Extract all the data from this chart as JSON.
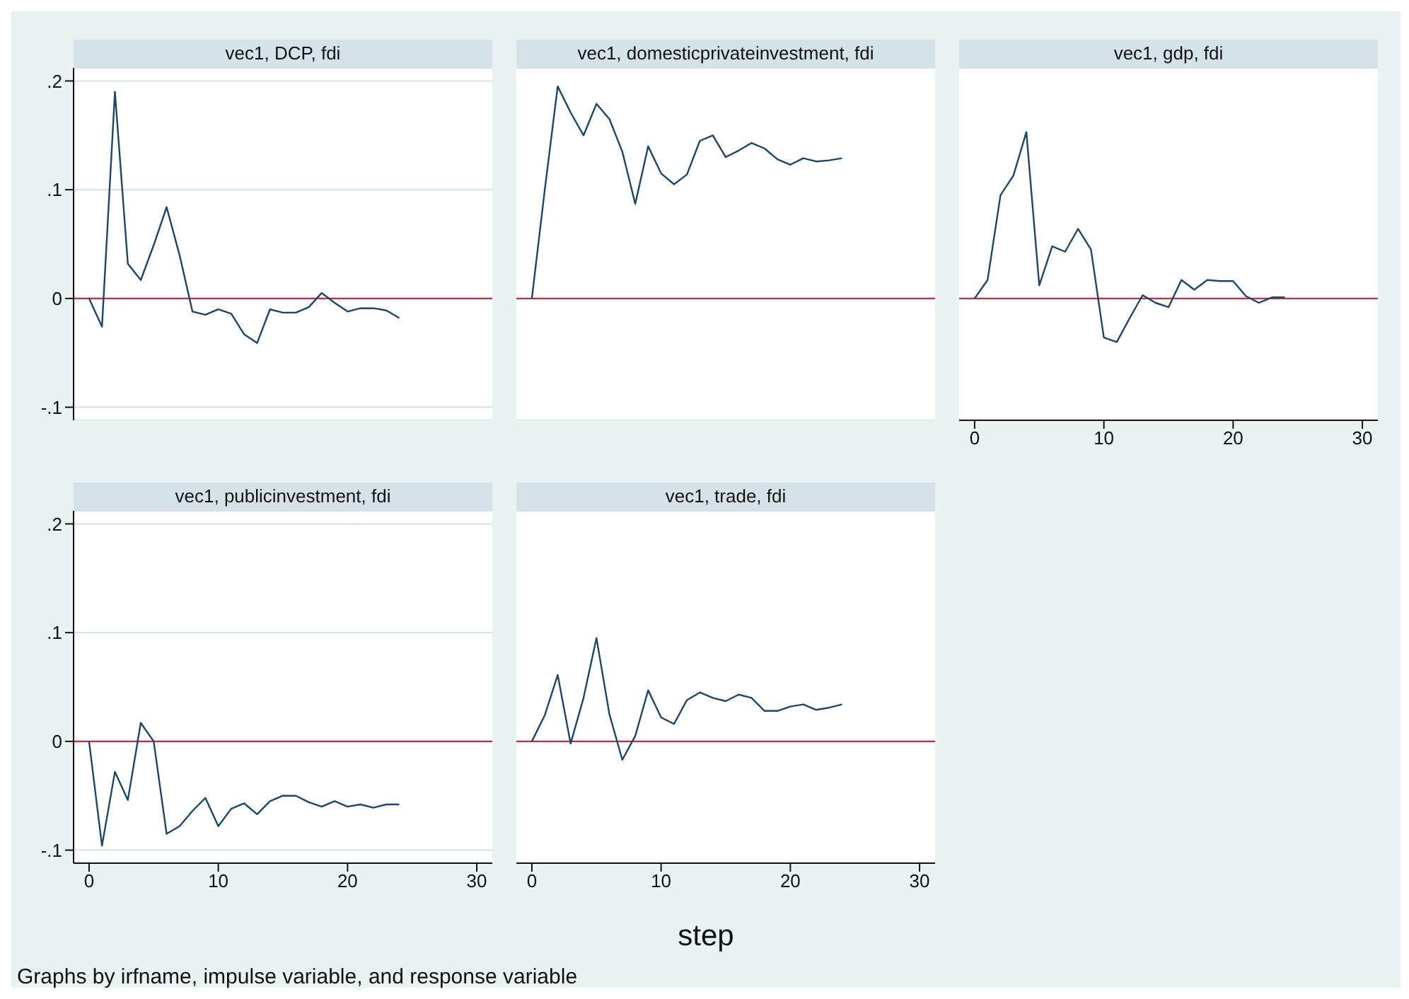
{
  "chart_data": [
    {
      "type": "line",
      "title": "vec1, DCP, fdi",
      "x": [
        0,
        1,
        2,
        3,
        4,
        5,
        6,
        7,
        8,
        9,
        10,
        11,
        12,
        13,
        14,
        15,
        16,
        17,
        18,
        19,
        20,
        21,
        22,
        23,
        24
      ],
      "series": [
        {
          "color": "#1a476f",
          "values": [
            0,
            -0.026,
            0.19,
            0.032,
            0.017,
            0.049,
            0.084,
            0.04,
            -0.012,
            -0.015,
            -0.01,
            -0.014,
            -0.033,
            -0.041,
            -0.01,
            -0.013,
            -0.013,
            -0.008,
            0.005,
            -0.004,
            -0.012,
            -0.009,
            -0.009,
            -0.011,
            -0.018
          ]
        }
      ],
      "xlim": [
        -1.2,
        31.2
      ],
      "xticks": [
        0,
        10,
        20,
        30
      ],
      "ylim": [
        -0.112,
        0.212
      ],
      "yticks": [
        {
          "value": -0.1,
          "label": "-.1"
        },
        0,
        {
          "value": 0.1,
          "label": ".1"
        },
        {
          "value": 0.2,
          "label": ".2"
        }
      ],
      "ref_lines": [
        {
          "axis": "y",
          "value": 0,
          "color": "#c0304a"
        }
      ],
      "grid": "y",
      "tick_labels": "y"
    },
    {
      "type": "line",
      "title": "vec1, domesticprivateinvestment, fdi",
      "x": [
        0,
        1,
        2,
        3,
        4,
        5,
        6,
        7,
        8,
        9,
        10,
        11,
        12,
        13,
        14,
        15,
        16,
        17,
        18,
        19,
        20,
        21,
        22,
        23,
        24
      ],
      "series": [
        {
          "color": "#1a476f",
          "values": [
            0,
            0.1,
            0.195,
            0.171,
            0.15,
            0.179,
            0.165,
            0.135,
            0.087,
            0.14,
            0.115,
            0.105,
            0.114,
            0.145,
            0.15,
            0.13,
            0.136,
            0.143,
            0.138,
            0.128,
            0.123,
            0.129,
            0.126,
            0.127,
            0.129
          ]
        }
      ],
      "xlim": [
        -1.2,
        31.2
      ],
      "xticks": [
        0,
        10,
        20,
        30
      ],
      "ylim": [
        -0.112,
        0.212
      ],
      "yticks": [
        -0.1,
        0,
        0.1,
        0.2
      ],
      "ref_lines": [
        {
          "axis": "y",
          "value": 0,
          "color": "#c0304a"
        }
      ],
      "grid": "y",
      "tick_labels": false
    },
    {
      "type": "line",
      "title": "vec1, gdp, fdi",
      "x": [
        0,
        1,
        2,
        3,
        4,
        5,
        6,
        7,
        8,
        9,
        10,
        11,
        12,
        13,
        14,
        15,
        16,
        17,
        18,
        19,
        20,
        21,
        22,
        23,
        24
      ],
      "series": [
        {
          "color": "#1a476f",
          "values": [
            0,
            0.017,
            0.095,
            0.113,
            0.153,
            0.012,
            0.048,
            0.043,
            0.064,
            0.045,
            -0.036,
            -0.04,
            -0.018,
            0.003,
            -0.004,
            -0.008,
            0.017,
            0.008,
            0.017,
            0.016,
            0.016,
            0.002,
            -0.004,
            0.001,
            0.001
          ]
        }
      ],
      "xlim": [
        -1.2,
        31.2
      ],
      "xticks": [
        0,
        10,
        20,
        30
      ],
      "ylim": [
        -0.112,
        0.212
      ],
      "yticks": [
        -0.1,
        0,
        0.1,
        0.2
      ],
      "ref_lines": [
        {
          "axis": "y",
          "value": 0,
          "color": "#c0304a"
        }
      ],
      "grid": "y",
      "tick_labels": "x"
    },
    {
      "type": "line",
      "title": "vec1, publicinvestment, fdi",
      "x": [
        0,
        1,
        2,
        3,
        4,
        5,
        6,
        7,
        8,
        9,
        10,
        11,
        12,
        13,
        14,
        15,
        16,
        17,
        18,
        19,
        20,
        21,
        22,
        23,
        24
      ],
      "series": [
        {
          "color": "#1a476f",
          "values": [
            0,
            -0.096,
            -0.028,
            -0.054,
            0.017,
            0,
            -0.085,
            -0.078,
            -0.064,
            -0.052,
            -0.078,
            -0.062,
            -0.057,
            -0.067,
            -0.055,
            -0.05,
            -0.05,
            -0.056,
            -0.06,
            -0.055,
            -0.06,
            -0.058,
            -0.061,
            -0.058,
            -0.058
          ]
        }
      ],
      "xlim": [
        -1.2,
        31.2
      ],
      "xticks": [
        0,
        10,
        20,
        30
      ],
      "ylim": [
        -0.112,
        0.212
      ],
      "yticks": [
        {
          "value": -0.1,
          "label": "-.1"
        },
        0,
        {
          "value": 0.1,
          "label": ".1"
        },
        {
          "value": 0.2,
          "label": ".2"
        }
      ],
      "ref_lines": [
        {
          "axis": "y",
          "value": 0,
          "color": "#c0304a"
        }
      ],
      "grid": "y",
      "annotations": [
        "Graphs by irfname, impulse variable, and response variable"
      ]
    },
    {
      "type": "line",
      "title": "vec1, trade, fdi",
      "xlabel": "step",
      "x": [
        0,
        1,
        2,
        3,
        4,
        5,
        6,
        7,
        8,
        9,
        10,
        11,
        12,
        13,
        14,
        15,
        16,
        17,
        18,
        19,
        20,
        21,
        22,
        23,
        24
      ],
      "series": [
        {
          "color": "#1a476f",
          "values": [
            0,
            0.024,
            0.061,
            -0.002,
            0.04,
            0.095,
            0.025,
            -0.017,
            0.005,
            0.047,
            0.022,
            0.016,
            0.038,
            0.045,
            0.04,
            0.037,
            0.043,
            0.04,
            0.028,
            0.028,
            0.032,
            0.034,
            0.029,
            0.031,
            0.034
          ]
        }
      ],
      "xlim": [
        -1.2,
        31.2
      ],
      "xticks": [
        0,
        10,
        20,
        30
      ],
      "ylim": [
        -0.112,
        0.212
      ],
      "yticks": [
        -0.1,
        0,
        0.1,
        0.2
      ],
      "ref_lines": [
        {
          "axis": "y",
          "value": 0,
          "color": "#c0304a"
        }
      ],
      "grid": "y",
      "tick_labels": "x"
    }
  ]
}
